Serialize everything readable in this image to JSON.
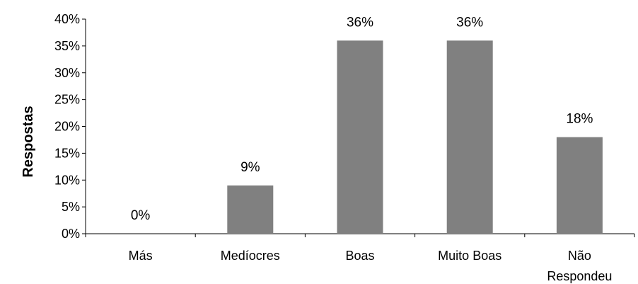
{
  "chart_data": {
    "type": "bar",
    "title": "",
    "xlabel": "",
    "ylabel": "Respostas",
    "categories": [
      [
        "Más"
      ],
      [
        "Medíocres"
      ],
      [
        "Boas"
      ],
      [
        "Muito Boas"
      ],
      [
        "Não",
        "Respondeu"
      ]
    ],
    "values": [
      0,
      9,
      36,
      36,
      18
    ],
    "data_labels": [
      "0%",
      "9%",
      "36%",
      "36%",
      "18%"
    ],
    "ylim": [
      0,
      40
    ],
    "yticks": [
      "0%",
      "5%",
      "10%",
      "15%",
      "20%",
      "25%",
      "30%",
      "35%",
      "40%"
    ],
    "grid": false,
    "legend": "none",
    "bar_color": "#808080"
  }
}
